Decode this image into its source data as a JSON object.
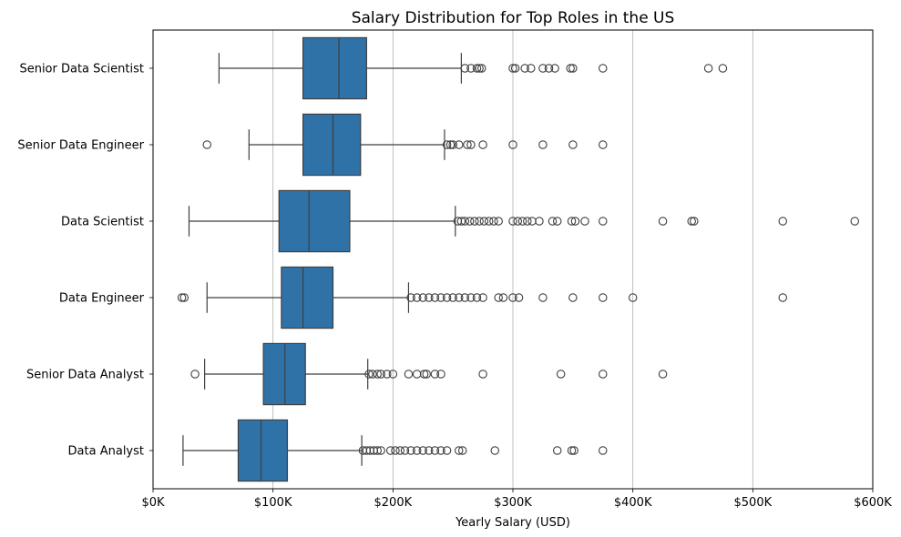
{
  "chart_data": {
    "type": "boxplot",
    "orientation": "horizontal",
    "title": "Salary Distribution for Top Roles in the US",
    "xlabel": "Yearly Salary (USD)",
    "ylabel": "",
    "xlim": [
      0,
      600000
    ],
    "xticks": [
      0,
      100000,
      200000,
      300000,
      400000,
      500000,
      600000
    ],
    "xtick_labels": [
      "$0K",
      "$100K",
      "$200K",
      "$300K",
      "$400K",
      "$500K",
      "$600K"
    ],
    "grid": "vertical",
    "color": "#2f72a8",
    "series": [
      {
        "name": "Senior Data Scientist",
        "whisker_low": 55000,
        "q1": 125000,
        "median": 155000,
        "q3": 178000,
        "whisker_high": 257000,
        "outliers": [
          260000,
          265000,
          270000,
          272000,
          274000,
          300000,
          302000,
          310000,
          315000,
          325000,
          330000,
          335000,
          348000,
          350000,
          375000,
          463000,
          475000
        ]
      },
      {
        "name": "Senior Data Engineer",
        "whisker_low": 80000,
        "q1": 125000,
        "median": 150000,
        "q3": 173000,
        "whisker_high": 243000,
        "outliers": [
          45000,
          245000,
          248000,
          250000,
          255000,
          262000,
          265000,
          275000,
          300000,
          325000,
          350000,
          375000
        ]
      },
      {
        "name": "Data Scientist",
        "whisker_low": 30000,
        "q1": 105000,
        "median": 130000,
        "q3": 164000,
        "whisker_high": 252000,
        "outliers": [
          254000,
          257000,
          260000,
          264000,
          268000,
          272000,
          276000,
          280000,
          284000,
          288000,
          300000,
          304000,
          308000,
          312000,
          316000,
          322000,
          333000,
          337000,
          349000,
          352000,
          360000,
          375000,
          425000,
          449000,
          451000,
          525000,
          585000
        ]
      },
      {
        "name": "Data Engineer",
        "whisker_low": 45000,
        "q1": 107000,
        "median": 125000,
        "q3": 150000,
        "whisker_high": 213000,
        "outliers": [
          24000,
          26000,
          215000,
          220000,
          225000,
          230000,
          235000,
          240000,
          245000,
          250000,
          255000,
          260000,
          265000,
          270000,
          275000,
          288000,
          292000,
          300000,
          305000,
          325000,
          350000,
          375000,
          400000,
          525000
        ]
      },
      {
        "name": "Senior Data Analyst",
        "whisker_low": 43000,
        "q1": 92000,
        "median": 110000,
        "q3": 127000,
        "whisker_high": 179000,
        "outliers": [
          35000,
          180000,
          183000,
          187000,
          190000,
          195000,
          200000,
          213000,
          220000,
          226000,
          228000,
          235000,
          240000,
          275000,
          340000,
          375000,
          425000
        ]
      },
      {
        "name": "Data Analyst",
        "whisker_low": 25000,
        "q1": 71000,
        "median": 90000,
        "q3": 112000,
        "whisker_high": 174000,
        "outliers": [
          175000,
          178000,
          181000,
          184000,
          187000,
          190000,
          198000,
          202000,
          206000,
          210000,
          215000,
          220000,
          225000,
          230000,
          235000,
          240000,
          245000,
          255000,
          258000,
          285000,
          337000,
          349000,
          351000,
          375000
        ]
      }
    ]
  }
}
